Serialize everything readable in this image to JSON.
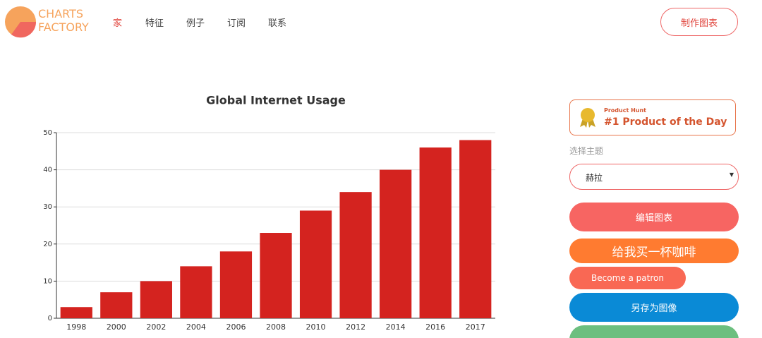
{
  "header": {
    "logo": [
      "CHARTS",
      "FACTORY"
    ],
    "nav": [
      "家",
      "特征",
      "例子",
      "订阅",
      "联系"
    ],
    "cta": "制作图表"
  },
  "chart_data": {
    "type": "bar",
    "title": "Global Internet Usage",
    "categories": [
      "1998",
      "2000",
      "2002",
      "2004",
      "2006",
      "2008",
      "2010",
      "2012",
      "2014",
      "2016",
      "2017"
    ],
    "values": [
      3,
      7,
      10,
      14,
      18,
      23,
      29,
      34,
      40,
      46,
      48
    ],
    "color": "#d4231f",
    "ylim": [
      0,
      50
    ],
    "yticks": [
      0,
      10,
      20,
      30,
      40,
      50
    ],
    "grid": true
  },
  "sidebar": {
    "badge": {
      "small": "Product Hunt",
      "big": "#1 Product of the Day"
    },
    "theme_label": "选择主题",
    "theme": "赫拉",
    "buttons": [
      "编辑图表",
      "给我买一杯咖啡",
      "Become a patron",
      "另存为图像"
    ]
  }
}
